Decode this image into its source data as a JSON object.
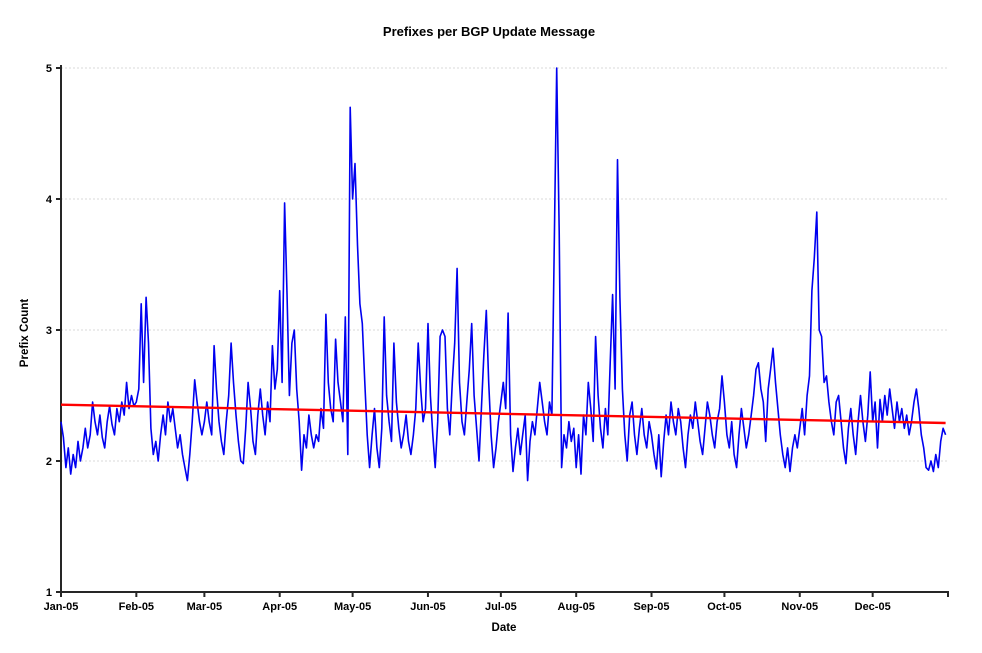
{
  "page": {
    "background": "#ffffff"
  },
  "chart_data": {
    "type": "line",
    "title": "Prefixes per BGP Update Message",
    "xlabel": "Date",
    "ylabel": "Prefix Count",
    "ylim": [
      1,
      5
    ],
    "yticks": [
      1,
      2,
      3,
      4,
      5
    ],
    "grid": true,
    "legend_position": "none",
    "x_axis": {
      "tick_labels": [
        "Jan-05",
        "Feb-05",
        "Mar-05",
        "Apr-05",
        "May-05",
        "Jun-05",
        "Jul-05",
        "Aug-05",
        "Sep-05",
        "Oct-05",
        "Nov-05",
        "Dec-05"
      ],
      "month_start_days": [
        1,
        32,
        60,
        91,
        121,
        152,
        182,
        213,
        244,
        274,
        305,
        335
      ],
      "axis_end_day": 366
    },
    "colors": {
      "daily_series": "#0000f0",
      "trend_series": "#ff0000",
      "gridline": "#d9d9d9",
      "axis": "#262626"
    },
    "series": [
      {
        "name": "daily-prefix-count",
        "color": "#0000f0",
        "start_day": 1,
        "values": [
          2.3,
          2.18,
          1.95,
          2.1,
          1.9,
          2.05,
          1.95,
          2.15,
          2.0,
          2.1,
          2.25,
          2.1,
          2.2,
          2.45,
          2.3,
          2.2,
          2.35,
          2.18,
          2.1,
          2.3,
          2.42,
          2.28,
          2.2,
          2.4,
          2.3,
          2.45,
          2.35,
          2.6,
          2.4,
          2.5,
          2.42,
          2.45,
          2.55,
          3.2,
          2.6,
          3.25,
          2.9,
          2.25,
          2.05,
          2.15,
          2.0,
          2.2,
          2.35,
          2.2,
          2.45,
          2.3,
          2.4,
          2.25,
          2.1,
          2.2,
          2.05,
          1.95,
          1.85,
          2.05,
          2.3,
          2.62,
          2.45,
          2.3,
          2.2,
          2.3,
          2.45,
          2.3,
          2.2,
          2.88,
          2.55,
          2.3,
          2.15,
          2.05,
          2.3,
          2.5,
          2.9,
          2.6,
          2.35,
          2.15,
          2.0,
          1.98,
          2.25,
          2.6,
          2.4,
          2.15,
          2.05,
          2.35,
          2.55,
          2.35,
          2.2,
          2.45,
          2.3,
          2.88,
          2.55,
          2.7,
          3.3,
          2.6,
          3.97,
          3.28,
          2.5,
          2.9,
          3.0,
          2.55,
          2.3,
          1.93,
          2.2,
          2.1,
          2.35,
          2.2,
          2.1,
          2.2,
          2.15,
          2.4,
          2.25,
          3.12,
          2.6,
          2.4,
          2.3,
          2.93,
          2.6,
          2.45,
          2.3,
          3.1,
          2.05,
          4.7,
          4.0,
          4.27,
          3.65,
          3.2,
          3.05,
          2.6,
          2.2,
          1.95,
          2.2,
          2.4,
          2.1,
          1.95,
          2.25,
          3.1,
          2.5,
          2.3,
          2.15,
          2.9,
          2.45,
          2.25,
          2.1,
          2.2,
          2.35,
          2.15,
          2.05,
          2.2,
          2.4,
          2.9,
          2.55,
          2.3,
          2.4,
          3.05,
          2.5,
          2.2,
          1.95,
          2.3,
          2.95,
          3.0,
          2.95,
          2.4,
          2.2,
          2.6,
          2.9,
          3.47,
          2.6,
          2.3,
          2.2,
          2.45,
          2.7,
          3.05,
          2.5,
          2.25,
          2.0,
          2.4,
          2.8,
          3.15,
          2.6,
          2.2,
          1.95,
          2.1,
          2.3,
          2.45,
          2.6,
          2.4,
          3.13,
          2.2,
          1.92,
          2.1,
          2.25,
          2.05,
          2.2,
          2.35,
          1.85,
          2.15,
          2.3,
          2.2,
          2.4,
          2.6,
          2.45,
          2.3,
          2.2,
          2.45,
          2.35,
          3.67,
          5.0,
          3.75,
          1.95,
          2.2,
          2.1,
          2.3,
          2.15,
          2.25,
          1.95,
          2.2,
          1.9,
          2.35,
          2.2,
          2.6,
          2.4,
          2.15,
          2.95,
          2.5,
          2.25,
          2.1,
          2.4,
          2.2,
          2.75,
          3.27,
          2.55,
          4.3,
          3.25,
          2.55,
          2.2,
          2.0,
          2.35,
          2.45,
          2.2,
          2.05,
          2.25,
          2.4,
          2.2,
          2.1,
          2.3,
          2.2,
          2.05,
          1.94,
          2.2,
          1.88,
          2.15,
          2.35,
          2.2,
          2.45,
          2.3,
          2.2,
          2.4,
          2.3,
          2.1,
          1.95,
          2.2,
          2.35,
          2.25,
          2.45,
          2.3,
          2.15,
          2.05,
          2.25,
          2.45,
          2.35,
          2.2,
          2.1,
          2.3,
          2.4,
          2.65,
          2.45,
          2.2,
          2.1,
          2.3,
          2.05,
          1.95,
          2.2,
          2.4,
          2.25,
          2.1,
          2.2,
          2.35,
          2.5,
          2.7,
          2.75,
          2.55,
          2.45,
          2.15,
          2.55,
          2.7,
          2.86,
          2.6,
          2.4,
          2.2,
          2.05,
          1.95,
          2.1,
          1.92,
          2.1,
          2.2,
          2.1,
          2.25,
          2.4,
          2.2,
          2.5,
          2.65,
          3.3,
          3.55,
          3.9,
          3.0,
          2.95,
          2.6,
          2.65,
          2.45,
          2.3,
          2.2,
          2.45,
          2.5,
          2.3,
          2.1,
          1.98,
          2.25,
          2.4,
          2.2,
          2.05,
          2.3,
          2.5,
          2.3,
          2.15,
          2.35,
          2.68,
          2.3,
          2.45,
          2.1,
          2.47,
          2.3,
          2.5,
          2.35,
          2.55,
          2.4,
          2.25,
          2.45,
          2.3,
          2.4,
          2.25,
          2.35,
          2.2,
          2.3,
          2.45,
          2.55,
          2.4,
          2.2,
          2.1,
          1.95,
          1.93,
          2.0,
          1.92,
          2.05,
          1.95,
          2.15,
          2.25,
          2.2
        ]
      },
      {
        "name": "linear-trend",
        "color": "#ff0000",
        "points": [
          [
            1,
            2.43
          ],
          [
            365,
            2.29
          ]
        ]
      }
    ]
  }
}
